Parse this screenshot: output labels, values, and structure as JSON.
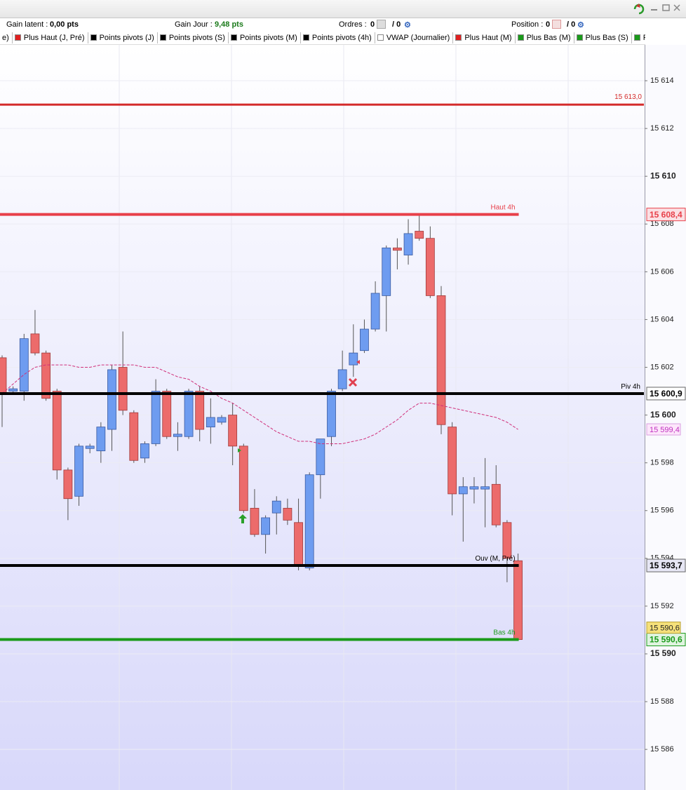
{
  "header": {
    "gain_latent_label": "Gain latent :",
    "gain_latent_value": "0,00 pts",
    "gain_jour_label": "Gain Jour :",
    "gain_jour_value": "9,48 pts",
    "ordres_label": "Ordres :",
    "ordres_value": "0",
    "ordres_total": "/ 0",
    "position_label": "Position :",
    "position_value": "0",
    "position_total": "/ 0"
  },
  "indicators": [
    {
      "label": "e)",
      "color": null
    },
    {
      "label": "Plus Haut (J, Pré)",
      "color": "#e02020"
    },
    {
      "label": "Points pivots (J)",
      "color": "#000000"
    },
    {
      "label": "Points pivots (S)",
      "color": "#000000"
    },
    {
      "label": "Points pivots (M)",
      "color": "#000000"
    },
    {
      "label": "Points pivots (4h)",
      "color": "#000000"
    },
    {
      "label": "VWAP (Journalier)",
      "color": "#ffffff"
    },
    {
      "label": "Plus Haut (M)",
      "color": "#e02020"
    },
    {
      "label": "Plus Bas (M)",
      "color": "#1a9a1a"
    },
    {
      "label": "Plus Bas (S)",
      "color": "#1a9a1a"
    },
    {
      "label": "Plus Bas",
      "color": "#1a9a1a"
    }
  ],
  "chart_data": {
    "type": "candlestick",
    "up_color": "#6e9cf0",
    "down_color": "#ec6b6b",
    "grid": true,
    "ylim": [
      15584.3,
      15615.5
    ],
    "yticks": [
      {
        "value": 15586,
        "label": "15 586"
      },
      {
        "value": 15588,
        "label": "15 588"
      },
      {
        "value": 15590,
        "label": "15 590"
      },
      {
        "value": 15592,
        "label": "15 592"
      },
      {
        "value": 15594,
        "label": "15 594"
      },
      {
        "value": 15596,
        "label": "15 596"
      },
      {
        "value": 15598,
        "label": "15 598"
      },
      {
        "value": 15600,
        "label": "15 600"
      },
      {
        "value": 15602,
        "label": "15 602"
      },
      {
        "value": 15604,
        "label": "15 604"
      },
      {
        "value": 15606,
        "label": "15 606"
      },
      {
        "value": 15608,
        "label": "15 608"
      },
      {
        "value": 15610,
        "label": "15 610"
      },
      {
        "value": 15612,
        "label": "15 612"
      },
      {
        "value": 15614,
        "label": "15 614"
      }
    ],
    "open": [
      15602.4,
      15601.0,
      15601.0,
      15603.4,
      15602.6,
      15601.0,
      15597.7,
      15596.6,
      15598.6,
      15598.5,
      15599.4,
      15602.0,
      15600.1,
      15598.2,
      15598.8,
      15601.0,
      15599.1,
      15599.1,
      15601.0,
      15599.5,
      15599.7,
      15600.0,
      15598.7,
      15596.1,
      15595.0,
      15595.9,
      15596.1,
      15595.5,
      15593.6,
      15597.5,
      15599.1,
      15601.1,
      15602.1,
      15602.7,
      15603.6,
      15605.0,
      15607.0,
      15606.7,
      15607.7,
      15607.4,
      15605.0,
      15599.5,
      15596.7,
      15596.9,
      15596.9,
      15597.1,
      15595.5,
      15593.9
    ],
    "high": [
      15602.5,
      15601.2,
      15603.4,
      15604.4,
      15602.7,
      15601.1,
      15597.8,
      15598.8,
      15598.8,
      15599.7,
      15602.1,
      15603.5,
      15600.2,
      15598.9,
      15601.5,
      15601.1,
      15599.7,
      15601.1,
      15601.2,
      15600.7,
      15600.0,
      15600.5,
      15598.8,
      15596.9,
      15595.8,
      15596.6,
      15596.5,
      15596.5,
      15597.6,
      15599.0,
      15601.1,
      15602.7,
      15603.8,
      15604.0,
      15605.6,
      15607.1,
      15607.4,
      15608.2,
      15608.4,
      15607.9,
      15605.4,
      15599.7,
      15597.4,
      15597.4,
      15598.2,
      15597.9,
      15595.6,
      15594.2
    ],
    "low": [
      15599.5,
      15600.9,
      15600.6,
      15602.5,
      15600.6,
      15597.3,
      15595.6,
      15596.2,
      15598.4,
      15598.0,
      15598.5,
      15600.0,
      15598.0,
      15598.0,
      15598.7,
      15599.0,
      15598.5,
      15599.0,
      15598.9,
      15598.8,
      15599.6,
      15597.9,
      15595.9,
      15594.9,
      15594.2,
      15595.0,
      15595.4,
      15593.5,
      15593.5,
      15596.5,
      15598.7,
      15601.0,
      15601.6,
      15602.6,
      15603.5,
      15603.5,
      15606.1,
      15606.3,
      15607.3,
      15604.9,
      15599.2,
      15595.8,
      15594.7,
      15596.3,
      15595.3,
      15595.3,
      15593.0,
      15590.6
    ],
    "close": [
      15600.9,
      15601.1,
      15603.2,
      15602.6,
      15600.7,
      15597.7,
      15596.5,
      15598.7,
      15598.7,
      15599.5,
      15601.9,
      15600.2,
      15598.1,
      15598.8,
      15601.0,
      15599.1,
      15599.2,
      15601.0,
      15599.4,
      15599.9,
      15599.9,
      15598.7,
      15596.0,
      15595.0,
      15595.7,
      15596.4,
      15595.6,
      15593.7,
      15597.5,
      15599.0,
      15601.0,
      15601.9,
      15602.6,
      15603.6,
      15605.1,
      15607.0,
      15606.9,
      15607.6,
      15607.4,
      15605.0,
      15599.6,
      15596.7,
      15597.0,
      15597.0,
      15597.0,
      15595.4,
      15594.0,
      15590.6
    ],
    "vwap": {
      "color": "#d0307a",
      "last_label": "15 599,4",
      "tag_color": "#fde6fb",
      "values": [
        15600.9,
        15601.3,
        15601.7,
        15602.0,
        15602.1,
        15602.1,
        15602.1,
        15602.0,
        15602.0,
        15602.1,
        15602.1,
        15602.1,
        15602.1,
        15602.0,
        15602.0,
        15601.8,
        15601.6,
        15601.5,
        15601.2,
        15601.0,
        15600.7,
        15600.5,
        15600.2,
        15599.9,
        15599.6,
        15599.3,
        15599.1,
        15598.9,
        15598.9,
        15598.8,
        15598.8,
        15598.8,
        15598.9,
        15599.0,
        15599.2,
        15599.5,
        15599.8,
        15600.2,
        15600.5,
        15600.5,
        15600.4,
        15600.3,
        15600.2,
        15600.1,
        15600.0,
        15599.9,
        15599.7,
        15599.4
      ]
    },
    "levels": [
      {
        "value": 15613.0,
        "value_label": "15 613,0",
        "color": "#d42a2a",
        "extend_to_axis": true
      },
      {
        "label": "Haut 4h",
        "value": 15608.4,
        "value_label": "15 608,4",
        "color": "#e8404a",
        "extend_to_axis": false,
        "tag_color": "#fbe0e4"
      },
      {
        "label": "Piv 4h",
        "value": 15600.9,
        "value_label": "15 600,9",
        "color": "#000000",
        "extend_to_axis": true,
        "tag_color": "#ffffff"
      },
      {
        "label": "Ouv (M, Pré)",
        "value": 15593.7,
        "value_label": "15 593,7",
        "color": "#000000",
        "extend_to_axis": false,
        "tag_color": "#e6e6f4"
      },
      {
        "label": "Bas 4h",
        "value": 15590.6,
        "value_label": "15 590,6",
        "color": "#1a9a1a",
        "extend_to_axis": false,
        "tag_color": "#e0f4e0"
      }
    ],
    "price_tag": {
      "value": 15590.6,
      "label": "15 590,6",
      "color": "#f5e07a"
    }
  }
}
